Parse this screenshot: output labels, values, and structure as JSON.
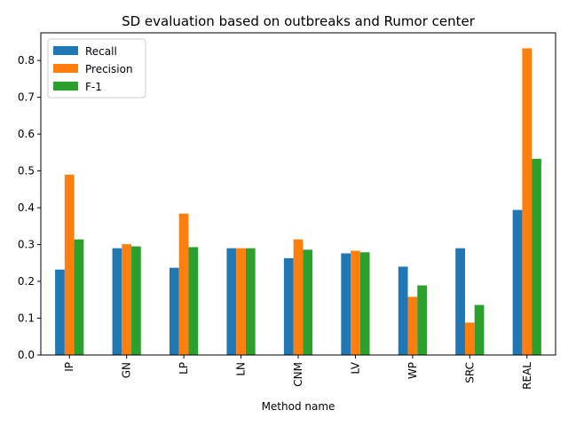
{
  "chart_data": {
    "type": "bar",
    "title": "SD evaluation based on outbreaks and Rumor center",
    "xlabel": "Method name",
    "ylabel": "",
    "categories": [
      "IP",
      "GN",
      "LP",
      "LN",
      "CNM",
      "LV",
      "WP",
      "SRC",
      "REAL"
    ],
    "series": [
      {
        "name": "Recall",
        "color": "#1f77b4",
        "values": [
          0.232,
          0.29,
          0.237,
          0.29,
          0.263,
          0.276,
          0.24,
          0.29,
          0.394
        ]
      },
      {
        "name": "Precision",
        "color": "#ff7f0e",
        "values": [
          0.49,
          0.301,
          0.384,
          0.29,
          0.314,
          0.283,
          0.158,
          0.088,
          0.833
        ]
      },
      {
        "name": "F-1",
        "color": "#2ca02c",
        "values": [
          0.314,
          0.295,
          0.293,
          0.29,
          0.286,
          0.279,
          0.189,
          0.136,
          0.533
        ]
      }
    ],
    "ylim": [
      0,
      0.875
    ],
    "yticks": [
      "0.0",
      "0.1",
      "0.2",
      "0.3",
      "0.4",
      "0.5",
      "0.6",
      "0.7",
      "0.8"
    ],
    "legend": "top-left",
    "grid": false
  }
}
